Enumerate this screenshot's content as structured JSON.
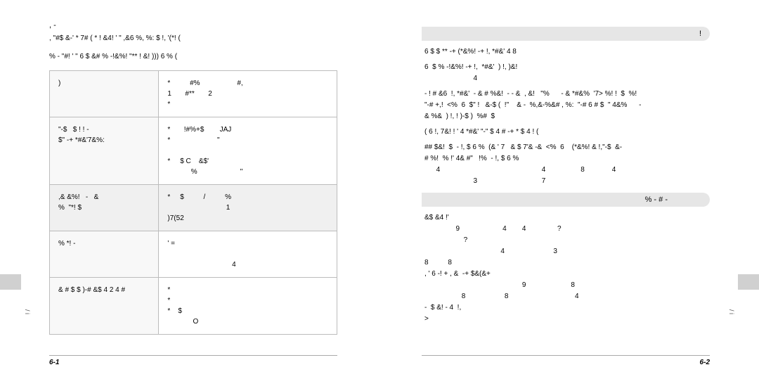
{
  "leftPage": {
    "title": ",      -",
    "intro1": ", \"#$ &-' *  7# ( *     ! &4!   ' \" ,&6  %, %: $ !,    '(*! (",
    "intro2": "% - \"#! ' \"   6   $ &#      % -!&%! \"**  ! &! )))   6   % (",
    "rows": [
      {
        "c1": ")",
        "c2": "*          #%                   #,\n1       #**       2\n*"
      },
      {
        "c1": "\"-$   $ ! ! -\n$\" -+ *#&'7&%:",
        "c2": "*       !#%+$        JAJ\n*                        \"\n\n*     $ C    &$'\n            %                      \""
      },
      {
        "c1": ",& &%!   -   &\n%  \"*! $",
        "c2": "*     $          /          %\n                              1\n)7(52"
      },
      {
        "c1": "% *! -",
        "c2": "' =\n\n                                 4"
      },
      {
        "c1": "& # $ $ )-# &$  4  2 4 #",
        "c2": "*\n*\n*    $\n             O"
      }
    ],
    "pageNum": "6-1"
  },
  "rightPage": {
    "header1": "!",
    "p1": "6  $ $  ** -+    (*&%! -+ !, *#&'                                            4                  8",
    "p2": "6  $ % -!&%! -+ !,  *#&'  ) !, )&!\n                         4",
    "p3": "- ! # &6  !, *#&'  - & # %&!  - - &  , &!   \"%      - & *#&%  '7> %! !  $  %!\n\"-# +,!  <%  6  $\" !   &-$ (  !\"    & -  %,&-%&# , %:  \"-# 6 # $  \" 4&%      -\n& %&  ) !, ! )-$ )  %#  $",
    "p4": "( 6  !, 7&! !  ' 4 *#&'    \"-\"  $ 4  # -+ *    $  4 ! (",
    "p5": "## $&!  $  - !, $ 6 %  (& ' 7   & $ 7'& -&  <%  6    (*&%! & !,\"-$  &-\n# %!  % !' 4& #\"   !%  - !, $ 6 %\n      4                                                    4                  8              4\n                         3                                 7",
    "header2": "%        -       # -",
    "p6": "&$ &4 !'\n                9                      4        4                ?\n                    ?\n                                       4                         3\n8          8\n, ' 6 -! + , &  -+ $&(&+\n                                                  9                       8\n                   8                    8                                  4\n-  $ &! - 4  !,\n>",
    "pageNum": "6-2"
  },
  "tabLabel": "/ i"
}
